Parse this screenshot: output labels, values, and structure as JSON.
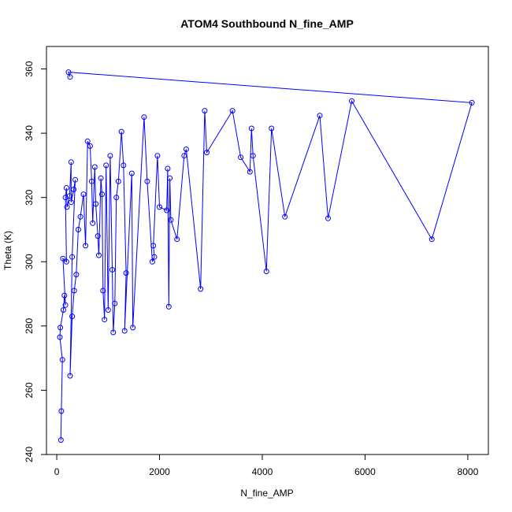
{
  "chart_data": {
    "type": "line",
    "title": "ATOM4 Southbound N_fine_AMP",
    "xlabel": "N_fine_AMP",
    "ylabel": "Theta (K)",
    "xlim": [
      -200,
      8400
    ],
    "ylim": [
      240,
      367
    ],
    "xticks": [
      0,
      2000,
      4000,
      6000,
      8000
    ],
    "yticks": [
      240,
      260,
      280,
      300,
      320,
      340,
      360
    ],
    "grid": false,
    "series": [
      {
        "color": "#0000ff",
        "marker": "open-circle",
        "points": [
          [
            80,
            244.5
          ],
          [
            90,
            253.5
          ],
          [
            110,
            269.5
          ],
          [
            60,
            276.5
          ],
          [
            70,
            279.5
          ],
          [
            130,
            285
          ],
          [
            150,
            289.5
          ],
          [
            170,
            286.5
          ],
          [
            120,
            301
          ],
          [
            190,
            300
          ],
          [
            170,
            320
          ],
          [
            190,
            323
          ],
          [
            200,
            317
          ],
          [
            250,
            320.5
          ],
          [
            280,
            331
          ],
          [
            280,
            318.5
          ],
          [
            330,
            322.5
          ],
          [
            360,
            325.5
          ],
          [
            300,
            301.5
          ],
          [
            260,
            264.5
          ],
          [
            300,
            283
          ],
          [
            340,
            291
          ],
          [
            380,
            296
          ],
          [
            420,
            310
          ],
          [
            460,
            314
          ],
          [
            520,
            321
          ],
          [
            560,
            305
          ],
          [
            600,
            337.5
          ],
          [
            650,
            336
          ],
          [
            680,
            325
          ],
          [
            700,
            312
          ],
          [
            740,
            329.5
          ],
          [
            760,
            318
          ],
          [
            800,
            308
          ],
          [
            820,
            302
          ],
          [
            860,
            326
          ],
          [
            880,
            321
          ],
          [
            900,
            291
          ],
          [
            930,
            282
          ],
          [
            960,
            330
          ],
          [
            1000,
            285
          ],
          [
            1040,
            333
          ],
          [
            1080,
            297.5
          ],
          [
            1100,
            278
          ],
          [
            1130,
            287
          ],
          [
            1160,
            320
          ],
          [
            1200,
            325
          ],
          [
            1260,
            340.5
          ],
          [
            1300,
            330
          ],
          [
            1350,
            296.5
          ],
          [
            1320,
            278.5
          ],
          [
            1460,
            327.5
          ],
          [
            1480,
            279.5
          ],
          [
            1700,
            345
          ],
          [
            1760,
            325
          ],
          [
            1860,
            300
          ],
          [
            1900,
            301.5
          ],
          [
            1880,
            305
          ],
          [
            1960,
            333
          ],
          [
            2000,
            317
          ],
          [
            2140,
            316
          ],
          [
            2160,
            329
          ],
          [
            2180,
            286
          ],
          [
            2200,
            326
          ],
          [
            2220,
            313
          ],
          [
            2340,
            307
          ],
          [
            2480,
            333
          ],
          [
            2520,
            335
          ],
          [
            2800,
            291.5
          ],
          [
            2880,
            347
          ],
          [
            2920,
            334
          ],
          [
            3420,
            347
          ],
          [
            3580,
            332.5
          ],
          [
            3760,
            328
          ],
          [
            3790,
            341.5
          ],
          [
            3820,
            333
          ],
          [
            4080,
            297
          ],
          [
            4180,
            341.5
          ],
          [
            4440,
            314
          ],
          [
            5120,
            345.5
          ],
          [
            5280,
            313.5
          ],
          [
            5740,
            350
          ],
          [
            7300,
            307
          ],
          [
            8080,
            349.5
          ],
          [
            230,
            359
          ],
          [
            260,
            357.5
          ]
        ]
      }
    ]
  }
}
